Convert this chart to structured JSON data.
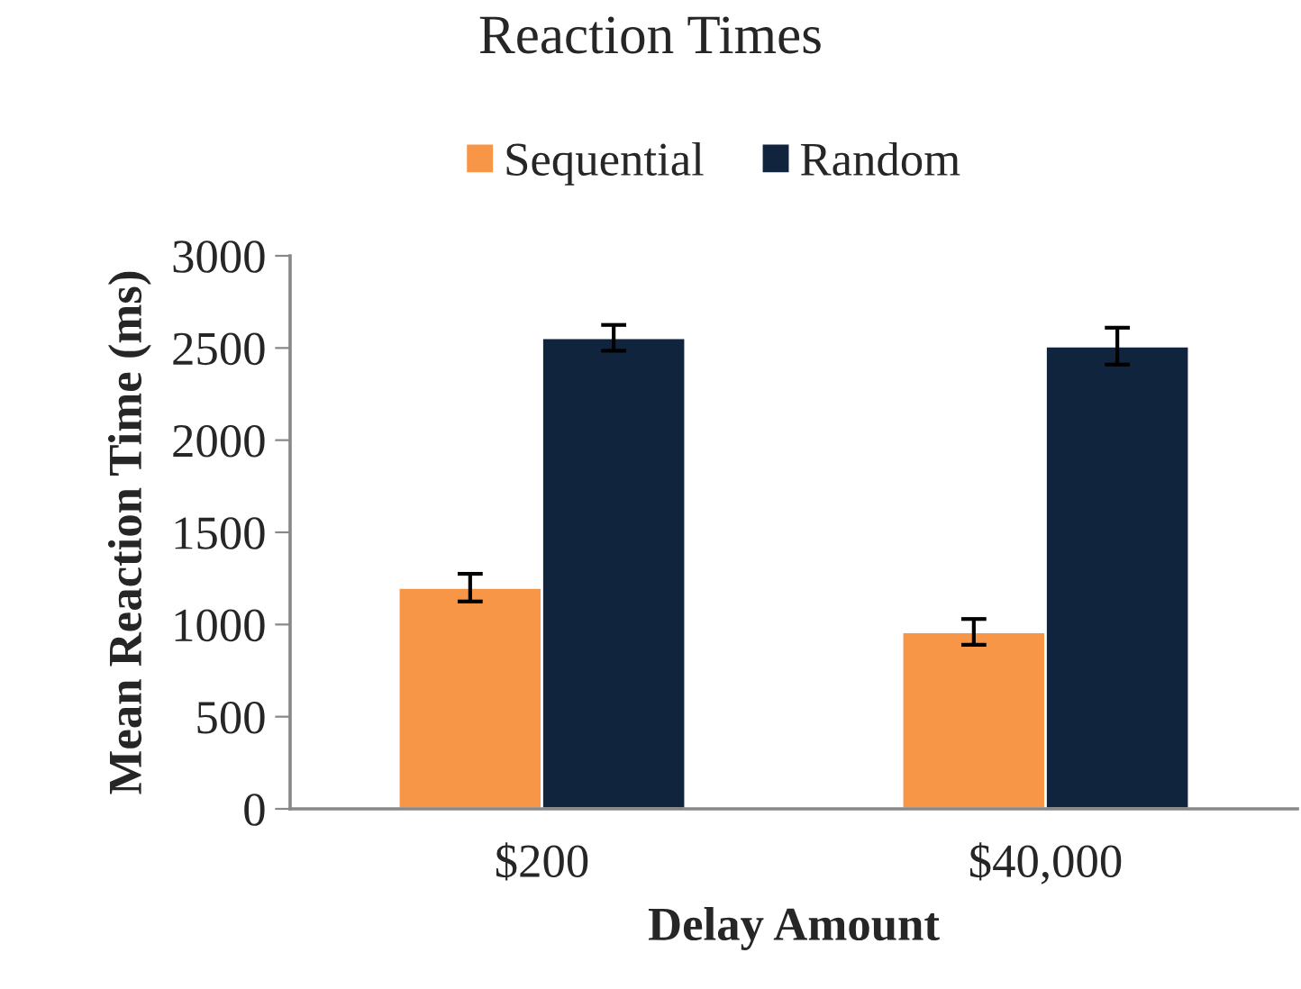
{
  "chart_data": {
    "type": "bar",
    "title": "Reaction Times",
    "xlabel": "Delay Amount",
    "ylabel": "Mean Reaction Time (ms)",
    "categories": [
      "$200",
      "$40,000"
    ],
    "series": [
      {
        "name": "Sequential",
        "color": "#f79646",
        "values": [
          1200,
          960
        ],
        "errors": [
          75,
          70
        ]
      },
      {
        "name": "Random",
        "color": "#10243e",
        "values": [
          2555,
          2510
        ],
        "errors": [
          70,
          100
        ]
      }
    ],
    "ylim": [
      0,
      3000
    ],
    "yticks": [
      0,
      500,
      1000,
      1500,
      2000,
      2500,
      3000
    ],
    "grid": false,
    "legend": "top"
  }
}
